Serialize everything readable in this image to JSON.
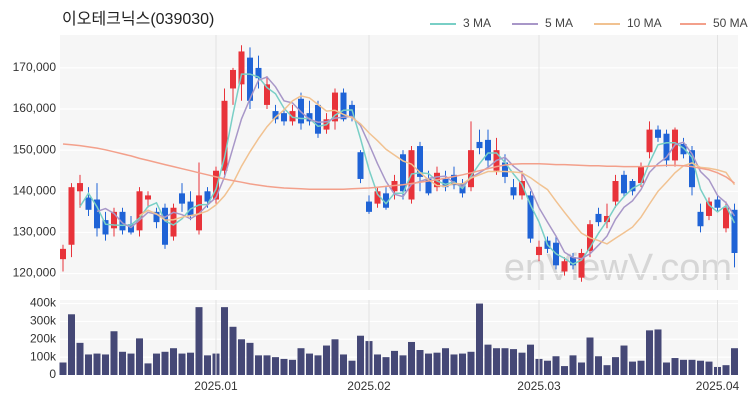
{
  "chart_data": [
    {
      "type": "candlestick",
      "title": "이오테크닉스(039030)",
      "watermark": "enViewV.com",
      "up_color": "#e8333a",
      "down_color": "#1f63d6",
      "grid": true,
      "ylim": [
        116000,
        178000
      ],
      "yticks": [
        {
          "value": 120000,
          "label": "120,000"
        },
        {
          "value": 130000,
          "label": "130,000"
        },
        {
          "value": 140000,
          "label": "140,000"
        },
        {
          "value": 150000,
          "label": "150,000"
        },
        {
          "value": 160000,
          "label": "160,000"
        },
        {
          "value": 170000,
          "label": "170,000"
        }
      ],
      "open": [
        123500,
        127000,
        140000,
        138500,
        138000,
        133000,
        131000,
        135000,
        132000,
        130500,
        138000,
        135000,
        136000,
        129000,
        139500,
        137500,
        130500,
        140000,
        138000,
        145000,
        165000,
        166000,
        172500,
        170000,
        161000,
        159500,
        159000,
        157000,
        162500,
        159000,
        161000,
        155000,
        157000,
        164000,
        161000,
        149500,
        137500,
        137000,
        139500,
        140000,
        149000,
        138000,
        151000,
        143000,
        141000,
        143000,
        144000,
        142000,
        141000,
        152000,
        152500,
        145000,
        147000,
        141000,
        139000,
        139000,
        124500,
        128000,
        127500,
        120500,
        124000,
        119000,
        125500,
        134500,
        132500,
        137500,
        144000,
        142500,
        142000,
        149500,
        155000,
        154000,
        147500,
        151500,
        150000,
        135000,
        134000,
        138000,
        131000,
        135500
      ],
      "high": [
        127000,
        142000,
        144000,
        141000,
        142000,
        135000,
        136000,
        136000,
        134000,
        141000,
        140000,
        136000,
        137000,
        137000,
        142000,
        140000,
        147000,
        141000,
        146000,
        165000,
        170000,
        175500,
        175000,
        173000,
        168000,
        161000,
        160000,
        161000,
        164000,
        162000,
        162000,
        159000,
        165000,
        165000,
        162000,
        150000,
        139000,
        141000,
        141000,
        144000,
        150000,
        151000,
        152000,
        145000,
        146000,
        145000,
        146000,
        143000,
        157000,
        155000,
        155000,
        153000,
        149000,
        143000,
        145000,
        140000,
        128000,
        129000,
        129000,
        124000,
        125000,
        126000,
        133000,
        136000,
        137000,
        144000,
        145000,
        143000,
        147000,
        157000,
        156000,
        155000,
        155500,
        153000,
        151000,
        137000,
        138500,
        139000,
        137500,
        137000
      ],
      "low": [
        120500,
        124000,
        136000,
        134000,
        129000,
        128000,
        129000,
        129500,
        129500,
        129000,
        136000,
        131000,
        126000,
        128000,
        135000,
        133000,
        129500,
        136000,
        137000,
        144000,
        161000,
        162000,
        160000,
        165000,
        160000,
        156500,
        156000,
        156000,
        155000,
        156000,
        153000,
        154000,
        155000,
        157000,
        157000,
        142000,
        134500,
        136000,
        135500,
        138000,
        138000,
        137000,
        140000,
        139000,
        140000,
        140000,
        140500,
        138500,
        140000,
        149000,
        146000,
        144000,
        142000,
        138000,
        138000,
        127500,
        123000,
        125000,
        121000,
        119500,
        121000,
        118000,
        124000,
        131500,
        131000,
        136000,
        138500,
        139000,
        141000,
        148000,
        152000,
        146000,
        146000,
        148000,
        139000,
        130000,
        133000,
        135000,
        130000,
        121500
      ],
      "close": [
        126000,
        141000,
        142000,
        135500,
        131000,
        129500,
        135000,
        130500,
        130000,
        140000,
        139000,
        132500,
        127000,
        136000,
        137000,
        134000,
        139000,
        137500,
        145000,
        162000,
        169500,
        174000,
        162000,
        167500,
        166000,
        157500,
        157000,
        159500,
        156500,
        157000,
        154000,
        157500,
        164000,
        157500,
        158000,
        143000,
        135000,
        140000,
        136000,
        142500,
        140000,
        150000,
        143500,
        139500,
        144500,
        141000,
        141500,
        139500,
        150000,
        150500,
        147500,
        150000,
        143500,
        139000,
        142500,
        128500,
        126500,
        126000,
        122000,
        123000,
        122000,
        125000,
        132000,
        132500,
        134000,
        142500,
        139500,
        140000,
        146000,
        155000,
        153000,
        147500,
        155000,
        149000,
        141000,
        131500,
        137500,
        136000,
        136000,
        125000
      ],
      "series": [
        {
          "name": "3 MA",
          "color": "#79cfc6",
          "values": [
            null,
            null,
            136300,
            139500,
            136200,
            132000,
            131800,
            131700,
            131800,
            133500,
            136300,
            137200,
            132800,
            131800,
            133300,
            135700,
            136700,
            136800,
            140500,
            148200,
            158800,
            168500,
            168500,
            167800,
            165200,
            163700,
            160200,
            158000,
            157700,
            157700,
            155800,
            156200,
            158500,
            159700,
            159800,
            152800,
            145300,
            139300,
            137000,
            139500,
            139500,
            144200,
            144500,
            144300,
            142500,
            141700,
            142300,
            140700,
            143700,
            146700,
            149300,
            149300,
            147000,
            144200,
            141700,
            136700,
            132500,
            127000,
            124800,
            123700,
            122300,
            123300,
            126300,
            129800,
            132800,
            136300,
            138700,
            140700,
            141800,
            147000,
            151300,
            151800,
            151800,
            150500,
            148300,
            140500,
            136700,
            135000,
            136500,
            132300
          ]
        },
        {
          "name": "5 MA",
          "color": "#a897c8",
          "values": [
            null,
            null,
            null,
            null,
            135100,
            135800,
            134600,
            132300,
            131200,
            133000,
            134900,
            134400,
            133700,
            134900,
            134300,
            133300,
            134600,
            136700,
            138500,
            143500,
            150600,
            157600,
            162500,
            167000,
            167800,
            165400,
            162000,
            161500,
            159300,
            157500,
            156800,
            156900,
            157800,
            158000,
            158200,
            156000,
            151500,
            146700,
            142400,
            139300,
            138700,
            141700,
            142400,
            143100,
            143500,
            143700,
            142000,
            141200,
            143300,
            144500,
            145800,
            147500,
            148300,
            146100,
            144500,
            140700,
            136000,
            132500,
            129100,
            125200,
            123900,
            123600,
            124800,
            126900,
            129100,
            133200,
            136100,
            137700,
            140400,
            144600,
            146700,
            148300,
            151300,
            151900,
            149100,
            144800,
            142800,
            139000,
            137200,
            134000
          ]
        },
        {
          "name": "10 MA",
          "color": "#f1c291",
          "values": [
            null,
            null,
            null,
            null,
            null,
            null,
            null,
            null,
            null,
            134100,
            135400,
            134500,
            133000,
            133100,
            133700,
            134100,
            134500,
            135200,
            136700,
            138900,
            142000,
            146100,
            149600,
            152800,
            155700,
            158000,
            159800,
            162000,
            163200,
            162700,
            161100,
            159500,
            159700,
            158700,
            157900,
            156400,
            154200,
            152300,
            150200,
            148800,
            147400,
            146600,
            144600,
            142800,
            141400,
            141200,
            141900,
            141800,
            143200,
            144000,
            144800,
            144800,
            144800,
            144700,
            144500,
            143300,
            141800,
            140400,
            137600,
            134900,
            132300,
            129800,
            128700,
            128000,
            127200,
            128600,
            129900,
            131300,
            133700,
            136900,
            140000,
            142200,
            144500,
            146200,
            146900,
            145800,
            145600,
            145200,
            144600,
            141600
          ]
        },
        {
          "name": "50 MA",
          "color": "#f3a08b",
          "values": [
            151500,
            151300,
            151100,
            150800,
            150500,
            150100,
            149600,
            149100,
            148600,
            148000,
            147500,
            147000,
            146500,
            146000,
            145500,
            145000,
            144500,
            144000,
            143500,
            143000,
            142600,
            142200,
            141800,
            141500,
            141200,
            141000,
            140800,
            140700,
            140600,
            140500,
            140500,
            140500,
            140500,
            140500,
            140600,
            140700,
            140800,
            141000,
            141200,
            141400,
            141600,
            141900,
            142200,
            142500,
            142800,
            143200,
            143600,
            144000,
            144500,
            145000,
            145500,
            146000,
            146400,
            146600,
            146700,
            146700,
            146700,
            146600,
            146500,
            146500,
            146400,
            146300,
            146200,
            146200,
            146100,
            146100,
            146000,
            146000,
            146000,
            146100,
            146200,
            146300,
            146300,
            146200,
            146000,
            145600,
            145200,
            144500,
            143500,
            142000
          ]
        }
      ]
    },
    {
      "type": "bar",
      "color": "#454876",
      "grid": true,
      "ylim": [
        0,
        420000
      ],
      "yticks": [
        0,
        {
          "value": 100000,
          "label": "100k"
        },
        {
          "value": 200000,
          "label": "200k"
        },
        {
          "value": 300000,
          "label": "300k"
        },
        {
          "value": 400000,
          "label": "400k"
        }
      ],
      "categories": [
        null,
        null,
        null,
        null,
        null,
        null,
        null,
        null,
        null,
        null,
        null,
        null,
        null,
        null,
        null,
        null,
        null,
        null,
        "2025.01",
        null,
        null,
        null,
        null,
        null,
        null,
        null,
        null,
        null,
        null,
        null,
        null,
        null,
        null,
        null,
        null,
        null,
        "2025.02",
        null,
        null,
        null,
        null,
        null,
        null,
        null,
        null,
        null,
        null,
        null,
        null,
        null,
        null,
        null,
        null,
        null,
        null,
        null,
        "2025.03",
        null,
        null,
        null,
        null,
        null,
        null,
        null,
        null,
        null,
        null,
        null,
        null,
        null,
        null,
        null,
        null,
        null,
        null,
        null,
        null,
        "2025.04",
        null,
        null
      ],
      "values": [
        70000,
        340000,
        180000,
        115000,
        120000,
        115000,
        245000,
        130000,
        120000,
        205000,
        65000,
        120000,
        130000,
        150000,
        120000,
        125000,
        380000,
        110000,
        120000,
        380000,
        270000,
        200000,
        180000,
        110000,
        110000,
        100000,
        90000,
        85000,
        150000,
        120000,
        110000,
        165000,
        200000,
        115000,
        80000,
        220000,
        190000,
        115000,
        100000,
        135000,
        110000,
        185000,
        140000,
        120000,
        125000,
        150000,
        115000,
        120000,
        130000,
        400000,
        170000,
        150000,
        150000,
        145000,
        125000,
        170000,
        90000,
        80000,
        105000,
        50000,
        110000,
        70000,
        210000,
        105000,
        55000,
        100000,
        165000,
        75000,
        80000,
        250000,
        255000,
        70000,
        95000,
        85000,
        85000,
        80000,
        75000,
        45000,
        55000,
        150000
      ]
    }
  ]
}
